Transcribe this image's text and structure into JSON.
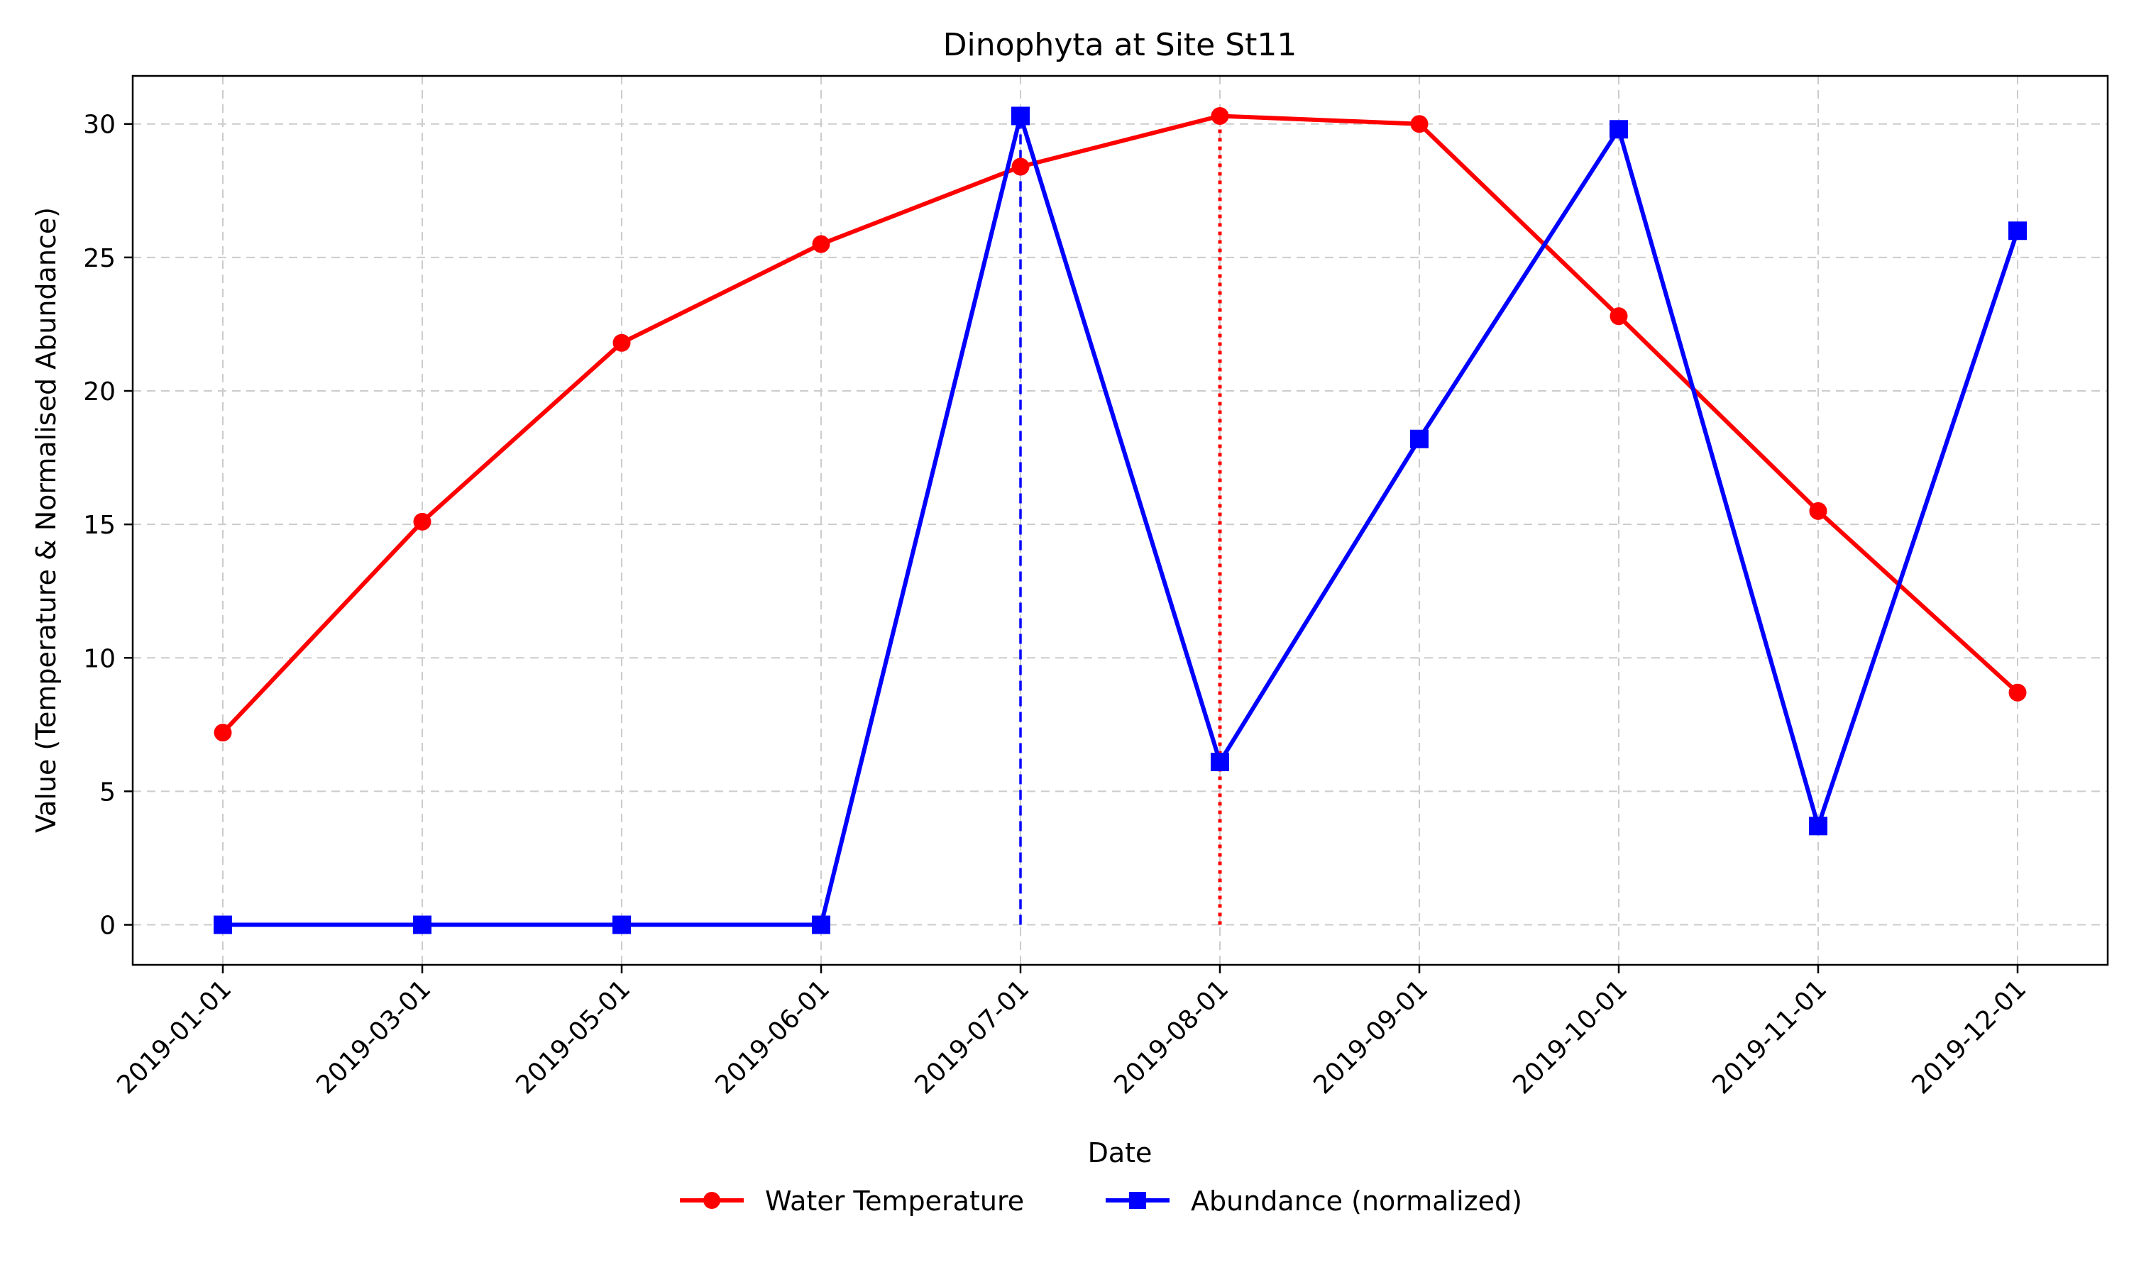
{
  "chart_data": {
    "type": "line",
    "title": "Dinophyta at Site St11",
    "xlabel": "Date",
    "ylabel": "Value (Temperature & Normalised Abundance)",
    "categories": [
      "2019-01-01",
      "2019-03-01",
      "2019-05-01",
      "2019-06-01",
      "2019-07-01",
      "2019-08-01",
      "2019-09-01",
      "2019-10-01",
      "2019-11-01",
      "2019-12-01"
    ],
    "yticks": [
      0,
      5,
      10,
      15,
      20,
      25,
      30
    ],
    "ylim": [
      -1.5,
      31.8
    ],
    "grid": true,
    "legend_position": "bottom-center",
    "series": [
      {
        "name": "Water Temperature",
        "color": "#ff0000",
        "marker": "circle",
        "values": [
          7.2,
          15.1,
          21.8,
          25.5,
          28.4,
          30.3,
          30.0,
          22.8,
          15.5,
          8.7
        ]
      },
      {
        "name": "Abundance (normalized)",
        "color": "#0000ff",
        "marker": "square",
        "values": [
          0.0,
          0.0,
          0.0,
          0.0,
          30.3,
          6.1,
          18.2,
          29.8,
          3.7,
          26.0
        ]
      }
    ],
    "reference_lines": [
      {
        "series": "Abundance (normalized)",
        "category": "2019-07-01",
        "from": 0,
        "to": 30.3,
        "color": "#0000ff",
        "style": "dashed"
      },
      {
        "series": "Water Temperature",
        "category": "2019-08-01",
        "from": 0,
        "to": 30.3,
        "color": "#ff0000",
        "style": "dotted"
      }
    ]
  }
}
